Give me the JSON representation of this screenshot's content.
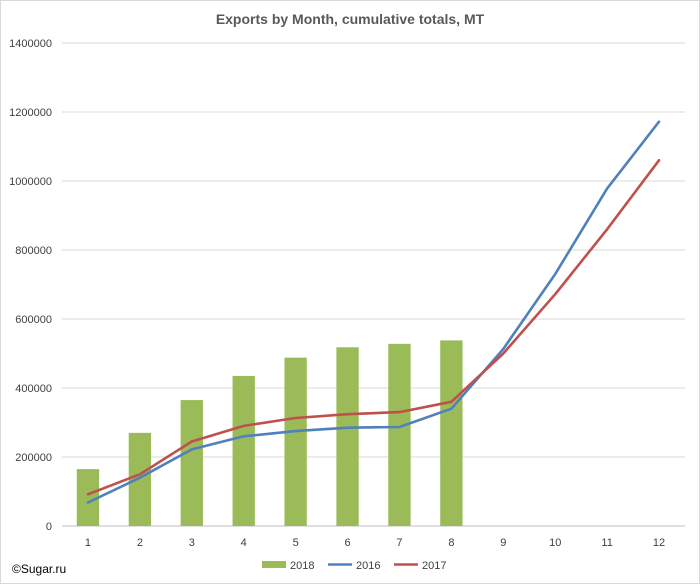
{
  "chart_data": {
    "type": "bar+line",
    "title": "Exports by Month, cumulative totals, MT",
    "xlabel": "",
    "ylabel": "",
    "categories": [
      "1",
      "2",
      "3",
      "4",
      "5",
      "6",
      "7",
      "8",
      "9",
      "10",
      "11",
      "12"
    ],
    "ylim": [
      0,
      1400000
    ],
    "yticks": [
      "0",
      "200000",
      "400000",
      "600000",
      "800000",
      "1000000",
      "1200000",
      "1400000"
    ],
    "grid": true,
    "legend_position": "bottom",
    "series": [
      {
        "name": "2018",
        "kind": "bar",
        "color": "#9bbb59",
        "values": [
          165000,
          270000,
          365000,
          435000,
          488000,
          518000,
          528000,
          538000,
          null,
          null,
          null,
          null
        ]
      },
      {
        "name": "2016",
        "kind": "line",
        "color": "#4f81bd",
        "values": [
          68000,
          140000,
          222000,
          260000,
          275000,
          285000,
          287000,
          340000,
          513000,
          730000,
          978000,
          1172000
        ]
      },
      {
        "name": "2017",
        "kind": "line",
        "color": "#c0504d",
        "values": [
          92000,
          150000,
          245000,
          290000,
          313000,
          324000,
          330000,
          360000,
          500000,
          672000,
          860000,
          1060000
        ]
      }
    ]
  },
  "footer": {
    "copyright": "©Sugar.ru"
  }
}
